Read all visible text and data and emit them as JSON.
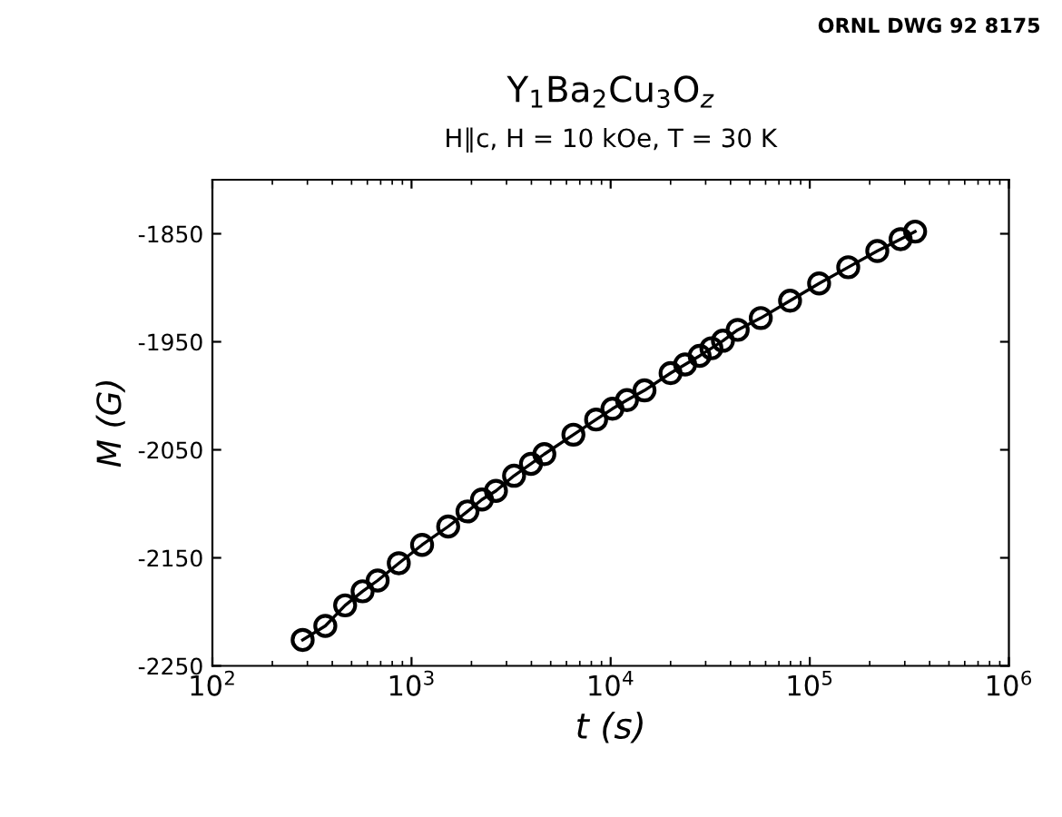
{
  "chart_data": {
    "type": "line",
    "title": "Y$_{1}$Ba$_{2}$Cu$_{3}$O$_{z}$",
    "subtitle": "H∥c, H = 10 kOe, T = 30 K",
    "xlabel": "t (s)",
    "ylabel": "M (G)",
    "annotations": [
      "ORNL DWG 92 8175"
    ],
    "log": "x",
    "marker": "circle",
    "line_style": "solid",
    "grid": false,
    "legend": false,
    "xlim": [
      100,
      1000000
    ],
    "xticks": [
      {
        "value": 100,
        "label": "10$^{2}$"
      },
      {
        "value": 1000,
        "label": "10$^{3}$"
      },
      {
        "value": 10000,
        "label": "10$^{4}$"
      },
      {
        "value": 100000,
        "label": "10$^{5}$"
      },
      {
        "value": 1000000,
        "label": "10$^{6}$"
      }
    ],
    "ylim": [
      -2250,
      -1800
    ],
    "yticks": [
      -2250,
      -2150,
      -2050,
      -1950,
      -1850
    ],
    "series": [
      {
        "color": "#000000",
        "x": [
          284,
          369,
          464,
          568,
          676,
          863,
          1130,
          1528,
          1910,
          2259,
          2655,
          3273,
          3981,
          4645,
          6501,
          8453,
          10210,
          12080,
          14790,
          20000,
          23660,
          27990,
          32060,
          36640,
          43450,
          56750,
          79620,
          111400,
          156000,
          218300,
          285800,
          338100
        ],
        "values": [
          -2226,
          -2213,
          -2194,
          -2181,
          -2171,
          -2155,
          -2138,
          -2121,
          -2107,
          -2096,
          -2088,
          -2074,
          -2063,
          -2054,
          -2036,
          -2022,
          -2012,
          -2004,
          -1995,
          -1979,
          -1971,
          -1963,
          -1956,
          -1949,
          -1939,
          -1928,
          -1912,
          -1896,
          -1881,
          -1866,
          -1855,
          -1848
        ]
      }
    ]
  }
}
